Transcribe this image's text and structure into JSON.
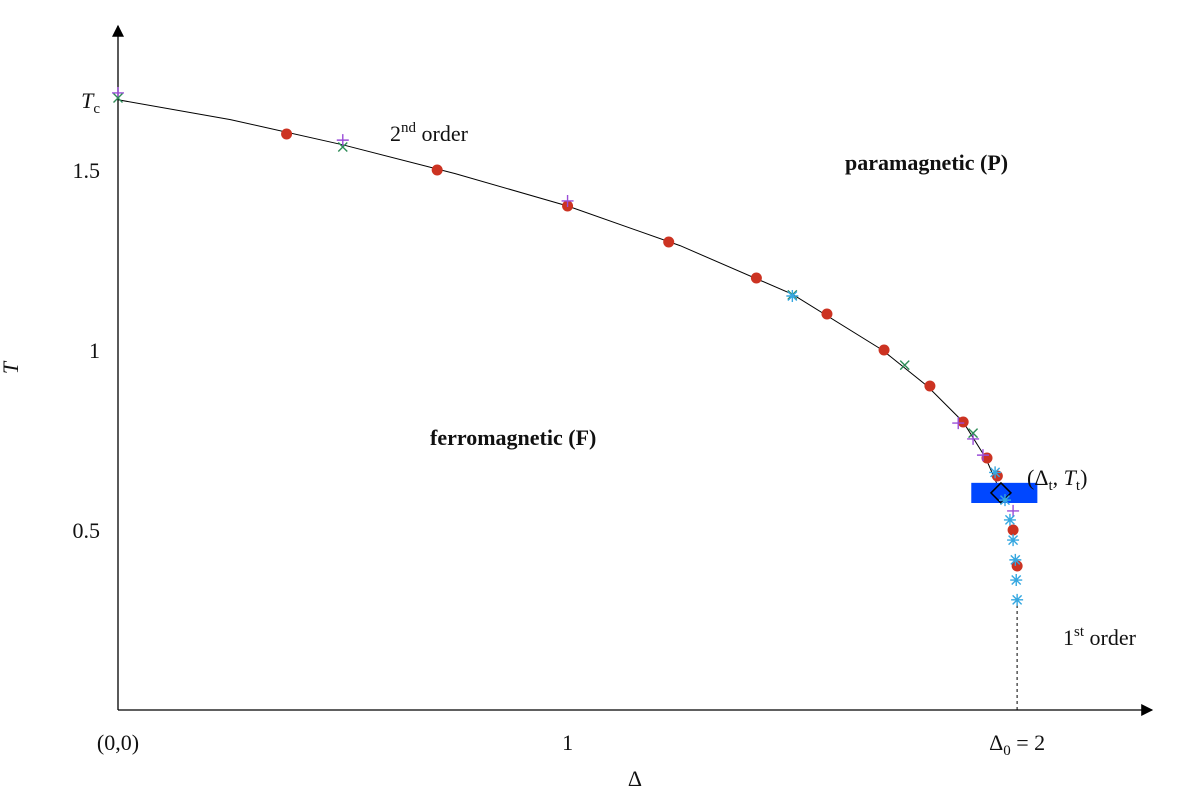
{
  "chart_data": {
    "type": "phase-diagram",
    "x_label": "Δ",
    "y_label": "T",
    "xlim": [
      0,
      2.3
    ],
    "ylim": [
      0,
      1.9
    ],
    "xticks": [
      {
        "value": 0,
        "label": "(0,0)"
      },
      {
        "value": 1,
        "label": "1"
      },
      {
        "value": 2,
        "label": "Δ",
        "sub": "0",
        "suffix": " = 2"
      }
    ],
    "yticks": [
      {
        "value": 0.5,
        "label": "0.5"
      },
      {
        "value": 1,
        "label": "1"
      },
      {
        "value": 1.5,
        "label": "1.5"
      },
      {
        "value": 1.695,
        "label": "T",
        "sub": "c"
      }
    ],
    "grid": false,
    "boundary": {
      "color": "#000000",
      "x": [
        0,
        0.25,
        0.5,
        0.75,
        1.0,
        1.25,
        1.5,
        1.7,
        1.8,
        1.88,
        1.93,
        1.964
      ],
      "y": [
        1.695,
        1.64,
        1.57,
        1.49,
        1.4,
        1.29,
        1.155,
        1.0,
        0.9,
        0.8,
        0.7,
        0.603
      ]
    },
    "first_order_line": {
      "color": "#000000",
      "x": [
        2,
        2
      ],
      "y": [
        0,
        0.3
      ]
    },
    "series": [
      {
        "marker": "circle",
        "color": "#cc3322",
        "x": [
          0.375,
          0.71,
          1.0,
          1.225,
          1.42,
          1.577,
          1.704,
          1.806,
          1.88,
          1.933,
          1.956,
          1.991,
          2.0
        ],
        "y": [
          1.6,
          1.5,
          1.4,
          1.3,
          1.2,
          1.1,
          1.0,
          0.9,
          0.8,
          0.7,
          0.65,
          0.5,
          0.4
        ]
      },
      {
        "marker": "plus",
        "color": "#9a4dd8",
        "x": [
          0,
          0.5,
          1.0,
          1.869,
          1.902,
          1.924,
          1.991
        ],
        "y": [
          1.714,
          1.583,
          1.414,
          0.797,
          0.753,
          0.708,
          0.553
        ]
      },
      {
        "marker": "cross",
        "color": "#2e8b57",
        "x": [
          0,
          0.5,
          1.5,
          1.75,
          1.902
        ],
        "y": [
          1.7,
          1.564,
          1.153,
          0.958,
          0.769
        ]
      },
      {
        "marker": "star",
        "color": "#35a7e0",
        "x": [
          1.5,
          1.951,
          1.973,
          1.984,
          1.991,
          1.996,
          1.998,
          2.0
        ],
        "y": [
          1.15,
          0.66,
          0.583,
          0.528,
          0.472,
          0.417,
          0.361,
          0.306
        ]
      }
    ],
    "tricritical_point": {
      "x": 1.964,
      "y": 0.603,
      "color": "#000000"
    },
    "tricritical_box": {
      "x": [
        1.898,
        2.045
      ],
      "y": [
        0.575,
        0.631
      ],
      "color": "#0047ff"
    },
    "annotations": [
      {
        "parts": [
          {
            "text": "2"
          },
          {
            "sup": "nd"
          },
          {
            "text": " order"
          }
        ]
      },
      {
        "parts": [
          {
            "bold": "paramagnetic (P)"
          }
        ]
      },
      {
        "parts": [
          {
            "bold": "ferromagnetic (F)"
          }
        ]
      },
      {
        "parts": [
          {
            "text": "(Δ"
          },
          {
            "sub": "t"
          },
          {
            "text": ", "
          },
          {
            "italic": "T"
          },
          {
            "sub": "t"
          },
          {
            "text": ")"
          }
        ]
      },
      {
        "parts": [
          {
            "text": "1"
          },
          {
            "sup": "st"
          },
          {
            "text": " order"
          }
        ]
      }
    ]
  }
}
